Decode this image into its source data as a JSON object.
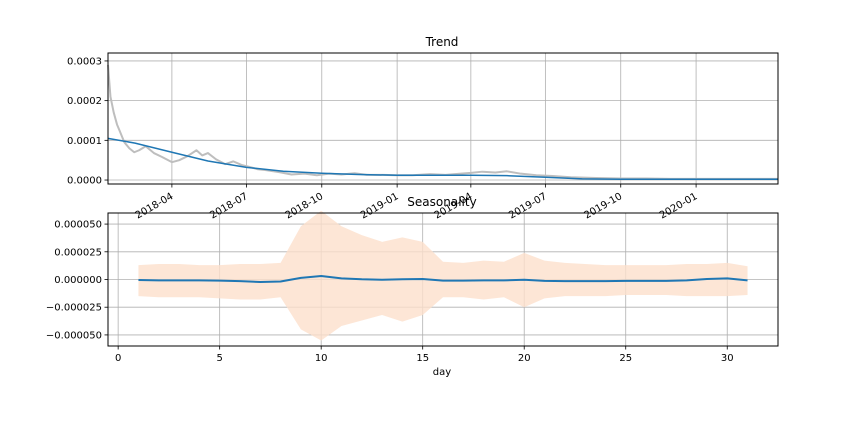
{
  "chart_data": [
    {
      "type": "line",
      "title": "Trend",
      "xlabel": "",
      "ylabel": "",
      "x_type": "date",
      "xlim": [
        "2018-01-13",
        "2020-04-10"
      ],
      "ylim": [
        -1e-05,
        0.00032
      ],
      "yticks": [
        0,
        0.0001,
        0.0002,
        0.0003
      ],
      "ytick_labels": [
        "0.0000",
        "0.0001",
        "0.0002",
        "0.0003"
      ],
      "xticks": [
        "2018-04-01",
        "2018-07-01",
        "2018-10-01",
        "2019-01-01",
        "2019-04-01",
        "2019-07-01",
        "2019-10-01",
        "2020-01-01"
      ],
      "xtick_labels": [
        "2018-04",
        "2018-07",
        "2018-10",
        "2019-01",
        "2019-04",
        "2019-07",
        "2019-10",
        "2020-01"
      ],
      "grid": true,
      "colors": {
        "trend": "#1f77b4",
        "observed": "#bebebe"
      },
      "series": [
        {
          "role": "observed",
          "x": [
            "2018-01-13",
            "2018-01-16",
            "2018-01-20",
            "2018-01-24",
            "2018-01-28",
            "2018-02-02",
            "2018-02-08",
            "2018-02-14",
            "2018-02-20",
            "2018-02-28",
            "2018-03-10",
            "2018-03-20",
            "2018-04-01",
            "2018-04-10",
            "2018-04-20",
            "2018-05-01",
            "2018-05-08",
            "2018-05-15",
            "2018-05-25",
            "2018-06-05",
            "2018-06-15",
            "2018-06-25",
            "2018-07-05",
            "2018-07-15",
            "2018-07-25",
            "2018-08-10",
            "2018-08-25",
            "2018-09-10",
            "2018-09-25",
            "2018-10-10",
            "2018-10-25",
            "2018-11-10",
            "2018-11-25",
            "2018-12-15",
            "2019-01-01",
            "2019-01-20",
            "2019-02-10",
            "2019-03-01",
            "2019-03-20",
            "2019-04-01",
            "2019-04-15",
            "2019-05-01",
            "2019-05-15",
            "2019-06-01",
            "2019-06-20",
            "2019-07-10",
            "2019-08-01",
            "2019-09-01",
            "2019-10-01",
            "2019-11-01",
            "2019-12-01",
            "2020-01-01",
            "2020-02-01",
            "2020-03-01",
            "2020-04-10"
          ],
          "y": [
            0.00029,
            0.00021,
            0.00017,
            0.00014,
            0.00012,
            9.5e-05,
            8e-05,
            7e-05,
            7.5e-05,
            8.5e-05,
            6.8e-05,
            5.8e-05,
            4.5e-05,
            5e-05,
            6e-05,
            7.5e-05,
            6.2e-05,
            6.8e-05,
            5.2e-05,
            4e-05,
            4.7e-05,
            3.8e-05,
            3.3e-05,
            2.7e-05,
            2.5e-05,
            2e-05,
            1.4e-05,
            1.6e-05,
            1.2e-05,
            1.6e-05,
            1.4e-05,
            1.7e-05,
            1.3e-05,
            1.3e-05,
            1.2e-05,
            1.2e-05,
            1.5e-05,
            1.3e-05,
            1.6e-05,
            1.8e-05,
            2.1e-05,
            1.9e-05,
            2.2e-05,
            1.6e-05,
            1.2e-05,
            1e-05,
            7e-06,
            5e-06,
            4e-06,
            4e-06,
            3e-06,
            3e-06,
            3e-06,
            3e-06,
            3e-06
          ]
        },
        {
          "role": "trend",
          "x": [
            "2018-01-13",
            "2018-02-15",
            "2018-04-01",
            "2018-05-15",
            "2018-07-01",
            "2018-08-15",
            "2018-10-01",
            "2018-11-15",
            "2019-01-01",
            "2019-02-15",
            "2019-04-01",
            "2019-05-15",
            "2019-07-01",
            "2019-08-15",
            "2019-10-01",
            "2019-11-15",
            "2020-01-01",
            "2020-02-15",
            "2020-04-10"
          ],
          "y": [
            0.000105,
            9.3e-05,
            7e-05,
            4.8e-05,
            3.2e-05,
            2.2e-05,
            1.7e-05,
            1.4e-05,
            1.2e-05,
            1.2e-05,
            1.2e-05,
            1.1e-05,
            7e-06,
            3e-06,
            2e-06,
            2e-06,
            2e-06,
            2e-06,
            2e-06
          ]
        }
      ]
    },
    {
      "type": "line",
      "title": "Seasonality",
      "xlabel": "day",
      "ylabel": "",
      "xlim": [
        -0.5,
        32.5
      ],
      "ylim": [
        -6e-05,
        6e-05
      ],
      "xticks": [
        0,
        5,
        10,
        15,
        20,
        25,
        30
      ],
      "xtick_labels": [
        "0",
        "5",
        "10",
        "15",
        "20",
        "25",
        "30"
      ],
      "yticks": [
        -5e-05,
        -2.5e-05,
        0,
        2.5e-05,
        5e-05
      ],
      "ytick_labels": [
        "−0.000050",
        "−0.000025",
        "0.000000",
        "0.000025",
        "0.000050"
      ],
      "grid": true,
      "colors": {
        "line": "#1f77b4",
        "band": "#fde0cc"
      },
      "series": [
        {
          "role": "seasonality",
          "x": [
            1,
            2,
            3,
            4,
            5,
            6,
            7,
            8,
            9,
            10,
            11,
            12,
            13,
            14,
            15,
            16,
            17,
            18,
            19,
            20,
            21,
            22,
            23,
            24,
            25,
            26,
            27,
            28,
            29,
            30,
            31
          ],
          "y": [
            -5e-07,
            -8e-07,
            -8e-07,
            -8e-07,
            -1e-06,
            -1.5e-06,
            -2.2e-06,
            -1.8e-06,
            1.5e-06,
            3.2e-06,
            1e-06,
            2e-07,
            -2e-07,
            2e-07,
            5e-07,
            -1e-06,
            -1e-06,
            -8e-07,
            -8e-07,
            -2e-07,
            -1.2e-06,
            -1.5e-06,
            -1.5e-06,
            -1.5e-06,
            -1.2e-06,
            -1.2e-06,
            -1.2e-06,
            -8e-07,
            5e-07,
            1e-06,
            -8e-07
          ],
          "upper": [
            1.3e-05,
            1.4e-05,
            1.4e-05,
            1.3e-05,
            1.3e-05,
            1.4e-05,
            1.4e-05,
            1.5e-05,
            4.8e-05,
            6.2e-05,
            4.8e-05,
            4e-05,
            3.4e-05,
            3.8e-05,
            3.4e-05,
            1.6e-05,
            1.5e-05,
            1.7e-05,
            1.6e-05,
            2.4e-05,
            1.7e-05,
            1.5e-05,
            1.4e-05,
            1.3e-05,
            1.3e-05,
            1.3e-05,
            1.3e-05,
            1.4e-05,
            1.4e-05,
            1.5e-05,
            1.2e-05
          ],
          "lower": [
            -1.5e-05,
            -1.6e-05,
            -1.6e-05,
            -1.6e-05,
            -1.7e-05,
            -1.8e-05,
            -1.8e-05,
            -1.6e-05,
            -4.5e-05,
            -5.5e-05,
            -4.2e-05,
            -3.7e-05,
            -3.2e-05,
            -3.8e-05,
            -3.2e-05,
            -1.6e-05,
            -1.6e-05,
            -1.8e-05,
            -1.6e-05,
            -2.5e-05,
            -1.7e-05,
            -1.5e-05,
            -1.5e-05,
            -1.5e-05,
            -1.4e-05,
            -1.4e-05,
            -1.4e-05,
            -1.5e-05,
            -1.5e-05,
            -1.5e-05,
            -1.4e-05
          ]
        }
      ]
    }
  ]
}
